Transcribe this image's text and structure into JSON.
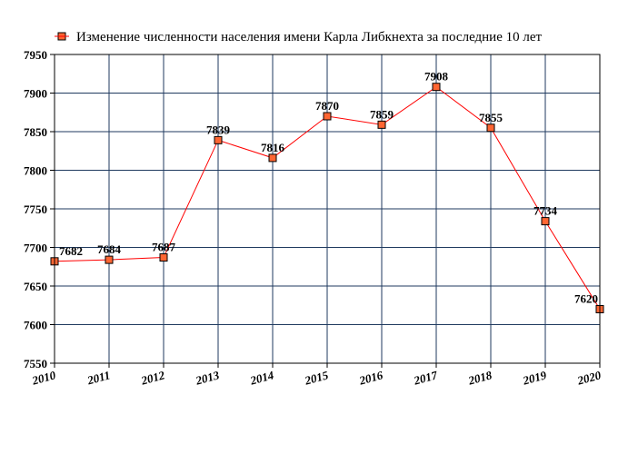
{
  "chart_data": {
    "type": "line",
    "title": "",
    "xlabel": "",
    "ylabel": "",
    "x": [
      "2010",
      "2011",
      "2012",
      "2013",
      "2014",
      "2015",
      "2016",
      "2017",
      "2018",
      "2019",
      "2020"
    ],
    "series": [
      {
        "name": "Изменение численности населения имени Карла Либкнехта за последние 10 лет",
        "values": [
          7682,
          7684,
          7687,
          7839,
          7816,
          7870,
          7859,
          7908,
          7855,
          7734,
          7620
        ],
        "color": "#ff0000",
        "marker_color": "#ff6633"
      }
    ],
    "y_ticks": [
      "7550",
      "7600",
      "7650",
      "7700",
      "7750",
      "7800",
      "7850",
      "7900",
      "7950"
    ],
    "ylim": [
      7550,
      7950
    ],
    "grid": true,
    "grid_color": "#1f3a5f",
    "legend_position": "top"
  }
}
